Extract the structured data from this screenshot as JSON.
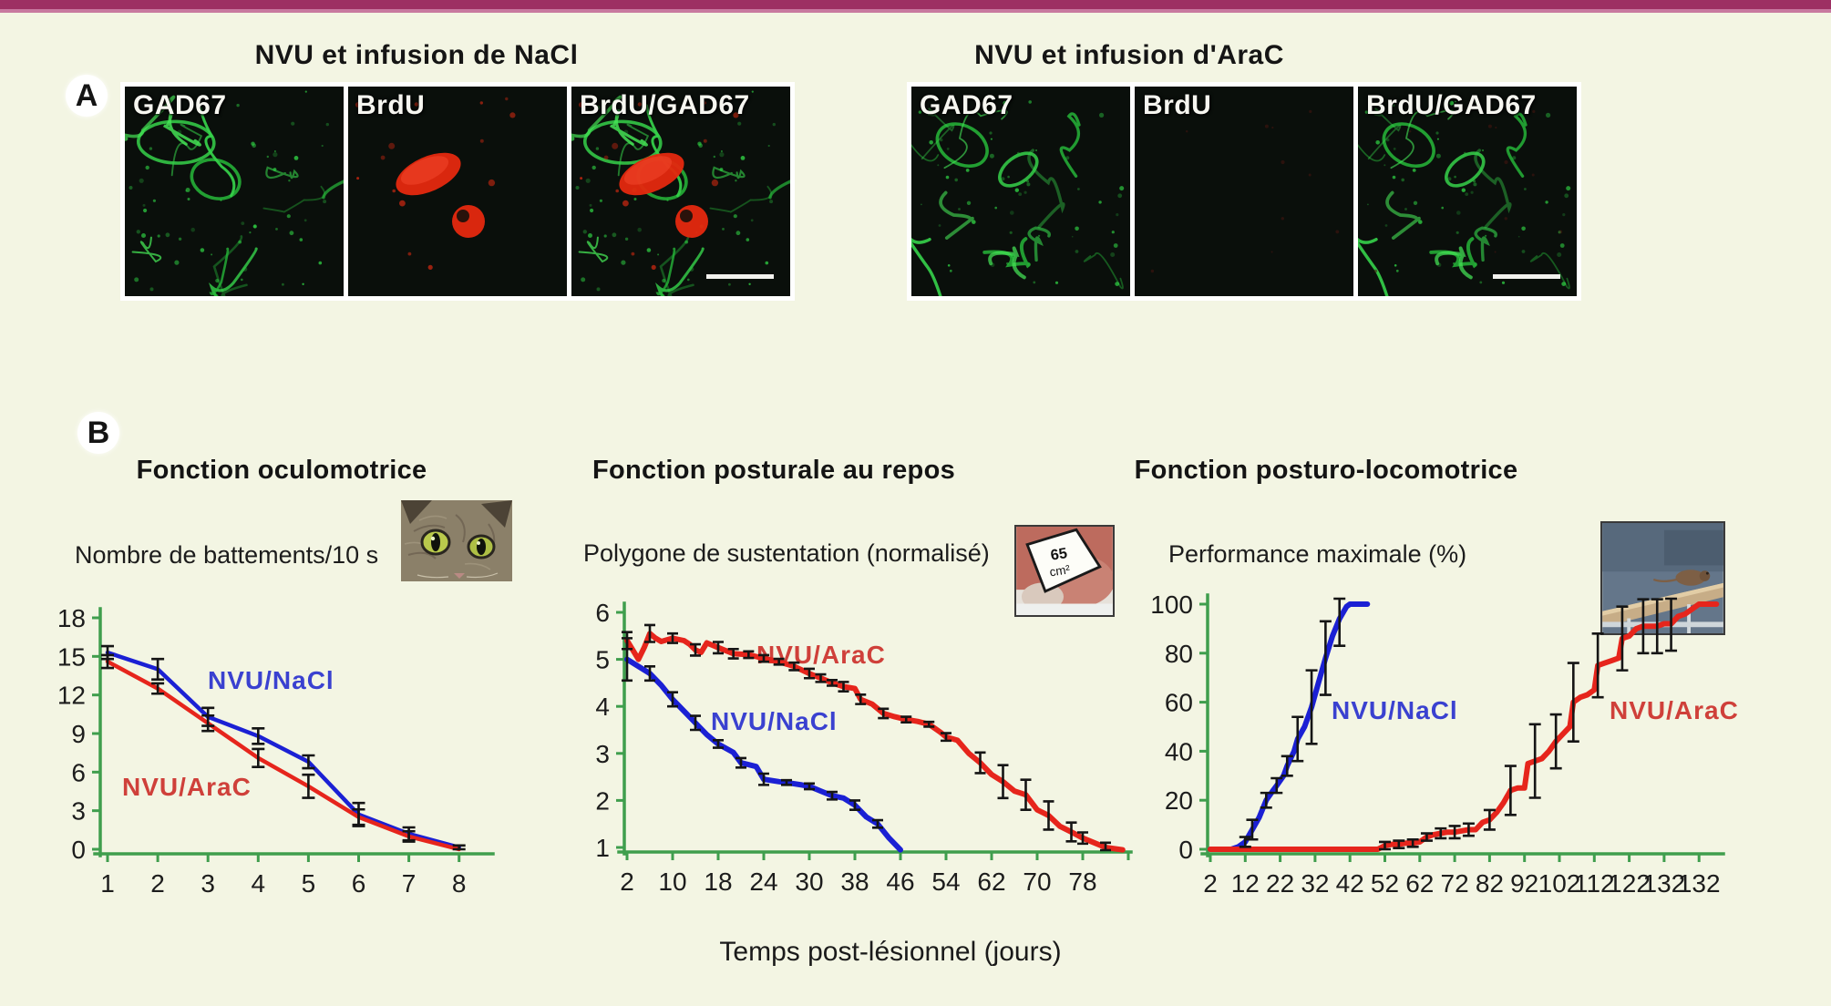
{
  "colors": {
    "background": "#f3f5e3",
    "topbar": "#9d3063",
    "topbar_light": "#c8799f",
    "axis_green": "#3f9e4d",
    "curve_blue": "#1b20d4",
    "curve_red": "#e6251c",
    "label_blue": "#3a41d0",
    "label_red": "#cf403a",
    "error_bar": "#151515"
  },
  "panel_a": {
    "label": "A",
    "groups": [
      {
        "title": "NVU et infusion de NaCl",
        "panels": [
          "GAD67",
          "BrdU",
          "BrdU/GAD67"
        ],
        "brdu_signal": "strong"
      },
      {
        "title": "NVU et infusion d'AraC",
        "panels": [
          "GAD67",
          "BrdU",
          "BrdU/GAD67"
        ],
        "brdu_signal": "faint"
      }
    ]
  },
  "panel_b": {
    "label": "B",
    "x_axis_label": "Temps post-lésionnel (jours)"
  },
  "chart_data": [
    {
      "type": "line",
      "title": "Fonction oculomotrice",
      "ylabel": "Nombre de battements/10 s",
      "xlabel": "Temps post-lésionnel (jours)",
      "x_ticks": [
        "1",
        "2",
        "3",
        "4",
        "5",
        "6",
        "7",
        "8"
      ],
      "uniform_step": 1,
      "y_ticks": [
        0,
        3,
        6,
        9,
        12,
        15,
        18
      ],
      "ylim": [
        0,
        18
      ],
      "grid": false,
      "series": [
        {
          "name": "NVU/NaCl",
          "color": "#1b20d4",
          "points": [
            [
              1,
              15.3,
              0.5
            ],
            [
              2,
              14,
              0.8
            ],
            [
              3,
              10.3,
              0.7
            ],
            [
              4,
              8.8,
              0.6
            ],
            [
              5,
              6.8,
              0.5
            ],
            [
              6,
              2.7,
              0.9
            ],
            [
              7,
              1.2,
              0.5
            ],
            [
              8,
              0.15,
              0.15
            ]
          ]
        },
        {
          "name": "NVU/AraC",
          "color": "#e6251c",
          "points": [
            [
              1,
              14.6,
              0.5
            ],
            [
              2,
              12.5,
              0.4
            ],
            [
              3,
              9.8,
              0.6
            ],
            [
              4,
              7.1,
              0.7
            ],
            [
              5,
              4.9,
              0.9
            ],
            [
              6,
              2.5,
              0.6
            ],
            [
              7,
              1.0,
              0.4
            ],
            [
              8,
              0,
              0
            ]
          ]
        }
      ]
    },
    {
      "type": "line",
      "title": "Fonction posturale au repos",
      "ylabel": "Polygone de sustentation (normalisé)",
      "xlabel": "Temps post-lésionnel (jours)",
      "photo_annotation": {
        "line1": "65",
        "line2": "cm²"
      },
      "x_ticks": [
        "2",
        "10",
        "18",
        "24",
        "30",
        "38",
        "46",
        "54",
        "62",
        "70",
        "78"
      ],
      "y_ticks": [
        1,
        2,
        3,
        4,
        5,
        6
      ],
      "ylim": [
        1,
        6
      ],
      "grid": false,
      "series": [
        {
          "name": "NVU/AraC",
          "color": "#e6251c",
          "points": [
            [
              2,
              5.4,
              0.18
            ],
            [
              3,
              5.2,
              0
            ],
            [
              4,
              5.0,
              0
            ],
            [
              5,
              5.25,
              0
            ],
            [
              6,
              5.55,
              0.18
            ],
            [
              7,
              5.45,
              0
            ],
            [
              8,
              5.38,
              0
            ],
            [
              10,
              5.45,
              0.1
            ],
            [
              12,
              5.4,
              0
            ],
            [
              13,
              5.32,
              0
            ],
            [
              14,
              5.2,
              0.12
            ],
            [
              15,
              5.15,
              0
            ],
            [
              16,
              5.35,
              0
            ],
            [
              17,
              5.3,
              0
            ],
            [
              18,
              5.25,
              0.12
            ],
            [
              20,
              5.12,
              0.1
            ],
            [
              22,
              5.1,
              0.07
            ],
            [
              24,
              5.02,
              0.07
            ],
            [
              26,
              4.95,
              0.06
            ],
            [
              28,
              4.85,
              0.08
            ],
            [
              30,
              4.7,
              0.1
            ],
            [
              32,
              4.6,
              0.08
            ],
            [
              34,
              4.5,
              0.06
            ],
            [
              36,
              4.42,
              0.1
            ],
            [
              38,
              4.38,
              0
            ],
            [
              39,
              4.15,
              0.1
            ],
            [
              41,
              4.05,
              0
            ],
            [
              43,
              3.85,
              0.1
            ],
            [
              45,
              3.78,
              0
            ],
            [
              47,
              3.72,
              0.06
            ],
            [
              49,
              3.68,
              0
            ],
            [
              51,
              3.62,
              0.05
            ],
            [
              53,
              3.45,
              0
            ],
            [
              54,
              3.35,
              0.08
            ],
            [
              56,
              3.28,
              0
            ],
            [
              58,
              3.0,
              0
            ],
            [
              60,
              2.8,
              0.22
            ],
            [
              62,
              2.55,
              0
            ],
            [
              64,
              2.4,
              0.35
            ],
            [
              66,
              2.2,
              0
            ],
            [
              68,
              2.12,
              0.32
            ],
            [
              70,
              1.8,
              0
            ],
            [
              72,
              1.68,
              0.3
            ],
            [
              74,
              1.45,
              0
            ],
            [
              76,
              1.33,
              0.2
            ],
            [
              78,
              1.2,
              0.12
            ],
            [
              80,
              1.1,
              0
            ],
            [
              82,
              1.0,
              0.1
            ],
            [
              85,
              0.95,
              0
            ]
          ]
        },
        {
          "name": "NVU/NaCl",
          "color": "#1b20d4",
          "points": [
            [
              2,
              5.0,
              0.45
            ],
            [
              4,
              4.85,
              0
            ],
            [
              6,
              4.7,
              0.15
            ],
            [
              8,
              4.45,
              0
            ],
            [
              10,
              4.15,
              0.15
            ],
            [
              12,
              3.9,
              0
            ],
            [
              14,
              3.65,
              0.15
            ],
            [
              16,
              3.4,
              0
            ],
            [
              18,
              3.2,
              0.08
            ],
            [
              20,
              3.02,
              0
            ],
            [
              21,
              2.8,
              0.1
            ],
            [
              23,
              2.72,
              0
            ],
            [
              24,
              2.45,
              0.12
            ],
            [
              26,
              2.4,
              0
            ],
            [
              27,
              2.38,
              0.05
            ],
            [
              29,
              2.33,
              0
            ],
            [
              30,
              2.3,
              0.06
            ],
            [
              32,
              2.2,
              0
            ],
            [
              34,
              2.1,
              0.08
            ],
            [
              36,
              2.05,
              0
            ],
            [
              38,
              1.9,
              0.1
            ],
            [
              40,
              1.65,
              0
            ],
            [
              42,
              1.5,
              0.08
            ],
            [
              44,
              1.2,
              0
            ],
            [
              46,
              0.95,
              0
            ]
          ]
        }
      ]
    },
    {
      "type": "line",
      "title": "Fonction posturo-locomotrice",
      "ylabel": "Performance maximale (%)",
      "xlabel": "Temps post-lésionnel (jours)",
      "x_ticks": [
        "2",
        "12",
        "22",
        "32",
        "42",
        "52",
        "62",
        "72",
        "82",
        "92",
        "102",
        "112",
        "122",
        "132",
        "132"
      ],
      "y_ticks": [
        0,
        20,
        40,
        60,
        80,
        100
      ],
      "ylim": [
        0,
        100
      ],
      "grid": false,
      "series": [
        {
          "name": "NVU/NaCl",
          "color": "#1b20d4",
          "points": [
            [
              2,
              0,
              0
            ],
            [
              8,
              0,
              0
            ],
            [
              10,
              1,
              0
            ],
            [
              12,
              3,
              2
            ],
            [
              14,
              8,
              4
            ],
            [
              16,
              13,
              0
            ],
            [
              18,
              20,
              3
            ],
            [
              20,
              24,
              0
            ],
            [
              21,
              26,
              3
            ],
            [
              23,
              30,
              0
            ],
            [
              24,
              34,
              4
            ],
            [
              26,
              40,
              0
            ],
            [
              27,
              45,
              9
            ],
            [
              29,
              50,
              0
            ],
            [
              31,
              58,
              15
            ],
            [
              33,
              68,
              0
            ],
            [
              35,
              78,
              15
            ],
            [
              37,
              87,
              0
            ],
            [
              39,
              94,
              11
            ],
            [
              41,
              99,
              0
            ],
            [
              42,
              100,
              0
            ],
            [
              47,
              100,
              0
            ]
          ]
        },
        {
          "name": "NVU/AraC",
          "color": "#e6251c",
          "points": [
            [
              2,
              0,
              0
            ],
            [
              50,
              0,
              0
            ],
            [
              52,
              1.5,
              1.5
            ],
            [
              54,
              2,
              0
            ],
            [
              56,
              2,
              1.5
            ],
            [
              58,
              2.5,
              0
            ],
            [
              60,
              2.5,
              1.5
            ],
            [
              62,
              3,
              0
            ],
            [
              64,
              5,
              1.5
            ],
            [
              66,
              6,
              0
            ],
            [
              68,
              6.5,
              2
            ],
            [
              70,
              7,
              0
            ],
            [
              72,
              7,
              2.5
            ],
            [
              74,
              7.5,
              0
            ],
            [
              76,
              8,
              2.5
            ],
            [
              78,
              8,
              0
            ],
            [
              80,
              11,
              0
            ],
            [
              82,
              12,
              4
            ],
            [
              84,
              15,
              0
            ],
            [
              86,
              19,
              0
            ],
            [
              88,
              24,
              10
            ],
            [
              90,
              25,
              0
            ],
            [
              92,
              25,
              0
            ],
            [
              93,
              35,
              0
            ],
            [
              95,
              36,
              15
            ],
            [
              97,
              37,
              0
            ],
            [
              99,
              40,
              0
            ],
            [
              101,
              44,
              11
            ],
            [
              103,
              47,
              0
            ],
            [
              105,
              50,
              0
            ],
            [
              106,
              60,
              16
            ],
            [
              108,
              62,
              0
            ],
            [
              110,
              63,
              0
            ],
            [
              112,
              65,
              0
            ],
            [
              113,
              75,
              13
            ],
            [
              115,
              76,
              0
            ],
            [
              117,
              77,
              0
            ],
            [
              119,
              78,
              0
            ],
            [
              120,
              86,
              13
            ],
            [
              122,
              87,
              0
            ],
            [
              124,
              90,
              0
            ],
            [
              126,
              91,
              11
            ],
            [
              128,
              91,
              0
            ],
            [
              130,
              91,
              11
            ],
            [
              132,
              92,
              0
            ],
            [
              134,
              92,
              11
            ],
            [
              136,
              95,
              0
            ],
            [
              138,
              96,
              0
            ],
            [
              140,
              98,
              0
            ],
            [
              142,
              100,
              0
            ],
            [
              147,
              100,
              0
            ]
          ]
        }
      ]
    }
  ]
}
